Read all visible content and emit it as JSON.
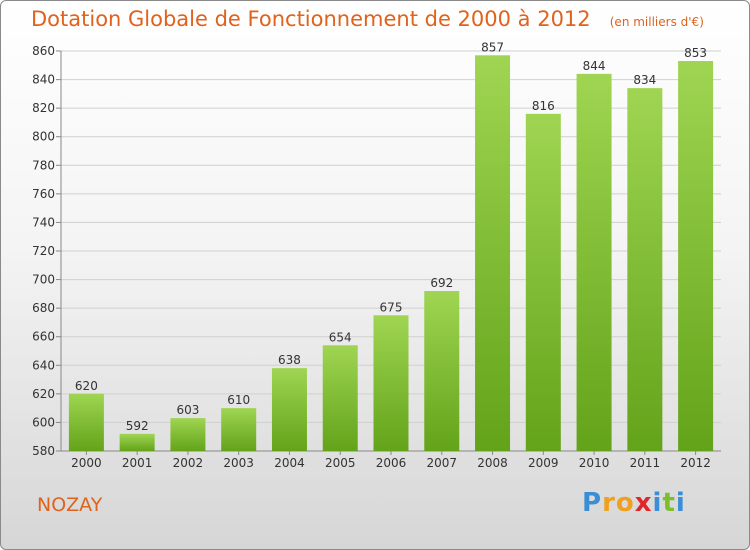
{
  "chart_data": {
    "type": "bar",
    "title": "Dotation Globale de Fonctionnement de 2000 à 2012",
    "unit_note": "(en milliers d'€)",
    "categories": [
      "2000",
      "2001",
      "2002",
      "2003",
      "2004",
      "2005",
      "2006",
      "2007",
      "2008",
      "2009",
      "2010",
      "2011",
      "2012"
    ],
    "values": [
      620,
      592,
      603,
      610,
      638,
      654,
      675,
      692,
      857,
      816,
      844,
      834,
      853
    ],
    "ylim": [
      580,
      860
    ],
    "yticks": [
      580,
      600,
      620,
      640,
      660,
      680,
      700,
      720,
      740,
      760,
      780,
      800,
      820,
      840,
      860
    ],
    "grid": true,
    "bar_colors": {
      "light": "#9fd552",
      "dark": "#63a31a"
    }
  },
  "location": "NOZAY",
  "logo": {
    "letters": [
      "P",
      "r",
      "o",
      "x",
      "i",
      "t",
      "i"
    ],
    "colors": [
      "#3a8ed6",
      "#f0a020",
      "#f0a020",
      "#e0262a",
      "#3a8ed6",
      "#7bbf2a",
      "#3a8ed6"
    ]
  }
}
